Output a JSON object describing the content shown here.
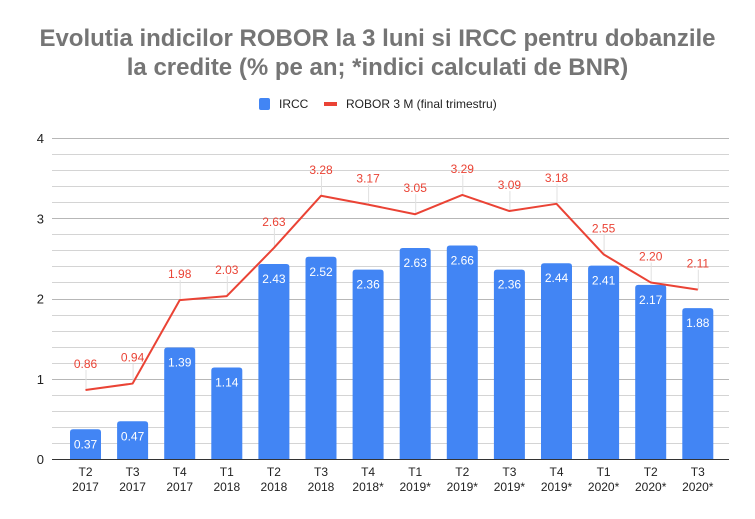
{
  "title": {
    "line1": "Evolutia indicilor ROBOR la 3 luni si IRCC pentru dobanzile",
    "line2": "la credite (% pe an; *indici calculati de BNR)"
  },
  "legend": [
    {
      "label": "IRCC",
      "type": "bar",
      "color": "#4285f4"
    },
    {
      "label": "ROBOR 3 M (final trimestru)",
      "type": "line",
      "color": "#ea4335"
    }
  ],
  "chart_data": {
    "type": "bar",
    "title": "Evolutia indicilor ROBOR la 3 luni si IRCC pentru dobanzile la credite (% pe an; *indici calculati de BNR)",
    "xlabel": "",
    "ylabel": "",
    "ylim": [
      0,
      4
    ],
    "yticks": [
      0,
      1,
      2,
      3,
      4
    ],
    "grid": true,
    "legend_position": "top",
    "categories": [
      [
        "T2",
        "2017"
      ],
      [
        "T3",
        "2017"
      ],
      [
        "T4",
        "2017"
      ],
      [
        "T1",
        "2018"
      ],
      [
        "T2",
        "2018"
      ],
      [
        "T3",
        "2018"
      ],
      [
        "T4",
        "2018*"
      ],
      [
        "T1",
        "2019*"
      ],
      [
        "T2",
        "2019*"
      ],
      [
        "T3",
        "2019*"
      ],
      [
        "T4",
        "2019*"
      ],
      [
        "T1",
        "2020*"
      ],
      [
        "T2",
        "2020*"
      ],
      [
        "T3",
        "2020*"
      ]
    ],
    "series": [
      {
        "name": "IRCC",
        "type": "bar",
        "color": "#4285f4",
        "values": [
          0.37,
          0.47,
          1.39,
          1.14,
          2.43,
          2.52,
          2.36,
          2.63,
          2.66,
          2.36,
          2.44,
          2.41,
          2.17,
          1.88
        ],
        "labels": [
          "0.37",
          "0.47",
          "1.39",
          "1.14",
          "2.43",
          "2.52",
          "2.36",
          "2.63",
          "2.66",
          "2.36",
          "2.44",
          "2.41",
          "2.17",
          "1.88"
        ]
      },
      {
        "name": "ROBOR 3 M (final trimestru)",
        "type": "line",
        "color": "#ea4335",
        "values": [
          0.86,
          0.94,
          1.98,
          2.03,
          2.63,
          3.28,
          3.17,
          3.05,
          3.29,
          3.09,
          3.18,
          2.55,
          2.2,
          2.11
        ],
        "labels": [
          "0.86",
          "0.94",
          "1.98",
          "2.03",
          "2.63",
          "3.28",
          "3.17",
          "3.05",
          "3.29",
          "3.09",
          "3.18",
          "2.55",
          "2.20",
          "2.11"
        ]
      }
    ]
  }
}
